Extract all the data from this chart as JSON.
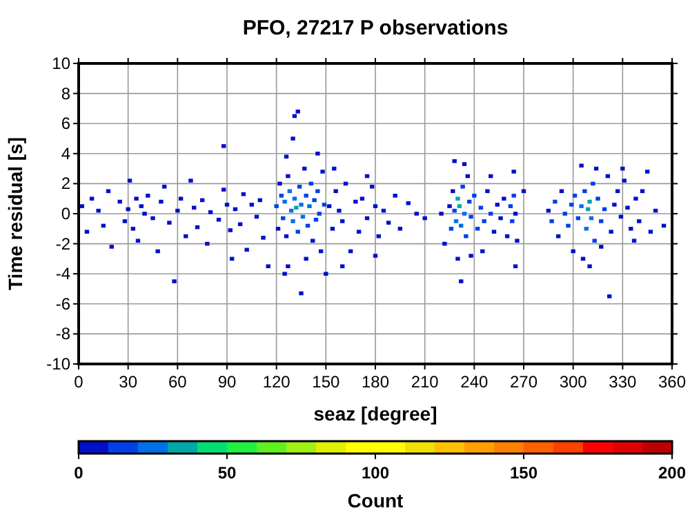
{
  "chart_data": {
    "type": "scatter",
    "title": "PFO, 27217 P observations",
    "xlabel": "seaz [degree]",
    "ylabel": "Time residual [s]",
    "clabel": "Count",
    "xlim": [
      0,
      360
    ],
    "xticks": [
      0,
      30,
      60,
      90,
      120,
      150,
      180,
      210,
      240,
      270,
      300,
      330,
      360
    ],
    "ylim": [
      -10,
      10
    ],
    "yticks": [
      -10,
      -8,
      -6,
      -4,
      -2,
      0,
      2,
      4,
      6,
      8,
      10
    ],
    "clim": [
      0,
      200
    ],
    "cticks": [
      0,
      50,
      100,
      150,
      200
    ],
    "grid": true,
    "marker": "square",
    "x": [
      2,
      5,
      8,
      12,
      15,
      18,
      20,
      25,
      28,
      30,
      31,
      33,
      35,
      36,
      38,
      40,
      42,
      45,
      48,
      50,
      52,
      55,
      58,
      60,
      62,
      65,
      68,
      70,
      72,
      75,
      78,
      80,
      85,
      88,
      90,
      92,
      95,
      98,
      100,
      102,
      105,
      108,
      110,
      112,
      88,
      93,
      115,
      120,
      121,
      122,
      123,
      124,
      125,
      126,
      127,
      128,
      129,
      130,
      131,
      132,
      133,
      134,
      135,
      136,
      137,
      138,
      139,
      140,
      141,
      142,
      143,
      144,
      145,
      146,
      147,
      148,
      149,
      131,
      133,
      130,
      127,
      125,
      135,
      138,
      145,
      126,
      152,
      154,
      156,
      158,
      160,
      162,
      165,
      168,
      170,
      172,
      175,
      178,
      180,
      182,
      185,
      188,
      192,
      195,
      200,
      205,
      160,
      150,
      175,
      180,
      210,
      155,
      225,
      226,
      227,
      228,
      229,
      230,
      231,
      232,
      233,
      234,
      235,
      236,
      237,
      238,
      240,
      242,
      244,
      246,
      248,
      250,
      252,
      254,
      256,
      258,
      260,
      262,
      263,
      264,
      265,
      266,
      230,
      232,
      234,
      228,
      238,
      245,
      250,
      265,
      264,
      222,
      270,
      220,
      285,
      287,
      289,
      291,
      293,
      295,
      297,
      299,
      301,
      303,
      305,
      307,
      308,
      309,
      310,
      311,
      312,
      313,
      315,
      317,
      319,
      321,
      323,
      325,
      327,
      329,
      331,
      333,
      335,
      338,
      340,
      342,
      345,
      347,
      350,
      355,
      310,
      306,
      314,
      305,
      322,
      300,
      337,
      330,
      317
    ],
    "values": [
      0.5,
      -1.2,
      1.0,
      0.2,
      -0.8,
      1.5,
      -2.2,
      0.8,
      -0.5,
      0.3,
      2.2,
      -1.0,
      1.0,
      -1.8,
      0.5,
      0.0,
      1.2,
      -0.3,
      -2.5,
      0.8,
      1.8,
      -0.6,
      -4.5,
      0.2,
      1.0,
      -1.5,
      2.2,
      0.4,
      -0.9,
      0.9,
      -2.0,
      0.1,
      -0.4,
      1.6,
      0.6,
      -1.1,
      0.3,
      -0.7,
      1.3,
      -2.4,
      0.6,
      -0.2,
      0.9,
      -1.6,
      4.5,
      -3.0,
      -3.5,
      0.5,
      -1.0,
      2.0,
      1.2,
      -0.3,
      0.8,
      -1.5,
      2.5,
      1.5,
      0.2,
      -0.5,
      1.0,
      0.4,
      -1.2,
      1.8,
      0.6,
      -0.2,
      3.0,
      1.2,
      -0.8,
      0.5,
      2.0,
      -1.8,
      0.9,
      -0.4,
      1.5,
      0.0,
      -2.5,
      2.8,
      0.6,
      6.5,
      6.8,
      5.0,
      -3.5,
      -4.0,
      -5.3,
      -3.0,
      4.0,
      3.8,
      0.5,
      -1.0,
      1.5,
      0.2,
      -0.5,
      2.0,
      -2.5,
      0.8,
      -1.2,
      1.0,
      -0.3,
      1.8,
      0.5,
      -1.5,
      0.2,
      -0.6,
      1.2,
      -1.0,
      0.7,
      0.0,
      -3.5,
      -4.0,
      2.5,
      -2.8,
      -0.3,
      3.0,
      0.5,
      -1.0,
      1.5,
      0.2,
      -0.5,
      1.0,
      0.5,
      -0.8,
      1.8,
      0.0,
      -1.5,
      2.5,
      0.8,
      -0.2,
      1.2,
      -1.0,
      0.4,
      -0.5,
      1.5,
      0.0,
      -1.2,
      0.6,
      -0.3,
      1.0,
      -1.5,
      0.5,
      -0.5,
      1.2,
      0.0,
      -1.8,
      -3.0,
      -4.5,
      3.3,
      3.5,
      -2.8,
      -2.5,
      2.5,
      -3.5,
      2.8,
      -2.0,
      1.5,
      0.0,
      0.2,
      -0.5,
      0.8,
      -1.5,
      1.5,
      0.0,
      -0.8,
      0.6,
      1.2,
      -0.3,
      0.5,
      1.5,
      -1.0,
      0.3,
      0.8,
      -0.3,
      2.0,
      -1.8,
      1.0,
      -0.5,
      0.3,
      2.5,
      -1.2,
      0.6,
      1.5,
      -0.2,
      2.2,
      0.4,
      -1.0,
      1.0,
      -0.5,
      1.5,
      2.8,
      -1.2,
      0.2,
      -0.8,
      -3.5,
      -3.0,
      3.0,
      3.2,
      -5.5,
      -2.5,
      -1.8,
      3.0,
      -2.2
    ],
    "cvalues": [
      5,
      4,
      5,
      4,
      3,
      4,
      3,
      5,
      4,
      6,
      3,
      4,
      5,
      3,
      6,
      4,
      5,
      4,
      3,
      4,
      3,
      4,
      3,
      5,
      4,
      3,
      3,
      5,
      4,
      5,
      3,
      4,
      5,
      3,
      6,
      4,
      5,
      4,
      5,
      3,
      6,
      4,
      5,
      3,
      3,
      3,
      3,
      10,
      6,
      6,
      15,
      18,
      20,
      8,
      8,
      22,
      25,
      20,
      28,
      35,
      15,
      18,
      22,
      20,
      8,
      15,
      18,
      20,
      10,
      8,
      15,
      12,
      10,
      12,
      5,
      5,
      10,
      3,
      3,
      3,
      3,
      3,
      3,
      3,
      3,
      4,
      8,
      6,
      5,
      6,
      5,
      4,
      4,
      4,
      4,
      4,
      5,
      4,
      4,
      3,
      3,
      3,
      3,
      3,
      3,
      3,
      3,
      3,
      3,
      3,
      3,
      3,
      8,
      10,
      8,
      15,
      20,
      30,
      35,
      25,
      15,
      20,
      12,
      8,
      15,
      18,
      12,
      10,
      12,
      10,
      8,
      10,
      8,
      8,
      6,
      6,
      5,
      10,
      12,
      10,
      8,
      6,
      4,
      3,
      3,
      3,
      4,
      3,
      3,
      3,
      3,
      3,
      3,
      3,
      8,
      10,
      10,
      5,
      5,
      12,
      10,
      15,
      12,
      18,
      22,
      18,
      20,
      30,
      35,
      28,
      12,
      10,
      15,
      12,
      10,
      6,
      6,
      8,
      5,
      8,
      6,
      5,
      3,
      3,
      3,
      3,
      3,
      3,
      3,
      3,
      3,
      3,
      3,
      3,
      3,
      3,
      3,
      3,
      3
    ]
  }
}
